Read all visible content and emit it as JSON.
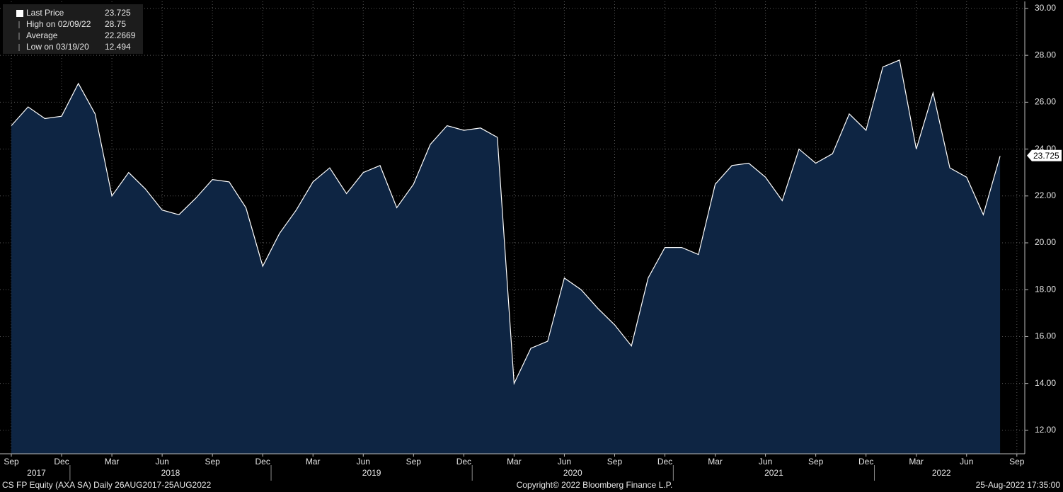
{
  "chart_data": {
    "type": "area",
    "x": [
      "2017-09",
      "2017-10",
      "2017-11",
      "2017-12",
      "2018-01",
      "2018-02",
      "2018-03",
      "2018-04",
      "2018-05",
      "2018-06",
      "2018-07",
      "2018-08",
      "2018-09",
      "2018-10",
      "2018-11",
      "2018-12",
      "2019-01",
      "2019-02",
      "2019-03",
      "2019-04",
      "2019-05",
      "2019-06",
      "2019-07",
      "2019-08",
      "2019-09",
      "2019-10",
      "2019-11",
      "2019-12",
      "2020-01",
      "2020-02",
      "2020-03",
      "2020-04",
      "2020-05",
      "2020-06",
      "2020-07",
      "2020-08",
      "2020-09",
      "2020-10",
      "2020-11",
      "2020-12",
      "2021-01",
      "2021-02",
      "2021-03",
      "2021-04",
      "2021-05",
      "2021-06",
      "2021-07",
      "2021-08",
      "2021-09",
      "2021-10",
      "2021-11",
      "2021-12",
      "2022-01",
      "2022-02",
      "2022-03",
      "2022-04",
      "2022-05",
      "2022-06",
      "2022-07",
      "2022-08"
    ],
    "series": [
      {
        "name": "Last Price",
        "color": "#ffffff",
        "fill": "#0e2543",
        "values": [
          25.0,
          25.8,
          25.3,
          25.4,
          26.8,
          25.5,
          22.0,
          23.0,
          22.3,
          21.4,
          21.2,
          21.9,
          22.7,
          22.6,
          21.5,
          19.0,
          20.4,
          21.4,
          22.6,
          23.2,
          22.1,
          23.0,
          23.3,
          21.5,
          22.5,
          24.2,
          25.0,
          24.8,
          24.9,
          24.5,
          14.0,
          15.5,
          15.8,
          18.5,
          18.0,
          17.2,
          16.5,
          15.6,
          18.5,
          19.8,
          19.8,
          19.5,
          22.5,
          23.3,
          23.4,
          22.8,
          21.8,
          24.0,
          23.4,
          23.8,
          25.5,
          24.8,
          27.5,
          27.8,
          24.0,
          26.4,
          23.2,
          22.8,
          21.2,
          23.7
        ]
      }
    ],
    "legend": [
      {
        "label": "Last Price",
        "value": 23.725
      },
      {
        "label": "High on 02/09/22",
        "value": 28.75
      },
      {
        "label": "Average",
        "value": 22.2669
      },
      {
        "label": "Low on 03/19/20",
        "value": 12.494
      }
    ],
    "last_price_label": "23.725",
    "ylim": [
      11,
      30.3
    ],
    "yticks": [
      {
        "value": 12,
        "label": "12.00"
      },
      {
        "value": 14,
        "label": "14.00"
      },
      {
        "value": 16,
        "label": "16.00"
      },
      {
        "value": 18,
        "label": "18.00"
      },
      {
        "value": 20,
        "label": "20.00"
      },
      {
        "value": 22,
        "label": "22.00"
      },
      {
        "value": 24,
        "label": "24.00"
      },
      {
        "value": 26,
        "label": "26.00"
      },
      {
        "value": 28,
        "label": "28.00"
      },
      {
        "value": 30,
        "label": "30.00"
      }
    ],
    "xticks": [
      {
        "value": "2017-09",
        "label": "Sep"
      },
      {
        "value": "2017-12",
        "label": "Dec"
      },
      {
        "value": "2018-03",
        "label": "Mar"
      },
      {
        "value": "2018-06",
        "label": "Jun"
      },
      {
        "value": "2018-09",
        "label": "Sep"
      },
      {
        "value": "2018-12",
        "label": "Dec"
      },
      {
        "value": "2019-03",
        "label": "Mar"
      },
      {
        "value": "2019-06",
        "label": "Jun"
      },
      {
        "value": "2019-09",
        "label": "Sep"
      },
      {
        "value": "2019-12",
        "label": "Dec"
      },
      {
        "value": "2020-03",
        "label": "Mar"
      },
      {
        "value": "2020-06",
        "label": "Jun"
      },
      {
        "value": "2020-09",
        "label": "Sep"
      },
      {
        "value": "2020-12",
        "label": "Dec"
      },
      {
        "value": "2021-03",
        "label": "Mar"
      },
      {
        "value": "2021-06",
        "label": "Jun"
      },
      {
        "value": "2021-09",
        "label": "Sep"
      },
      {
        "value": "2021-12",
        "label": "Dec"
      },
      {
        "value": "2022-03",
        "label": "Mar"
      },
      {
        "value": "2022-06",
        "label": "Jun"
      },
      {
        "value": "2022-09",
        "label": "Sep"
      }
    ],
    "years": [
      "2017",
      "2018",
      "2019",
      "2020",
      "2021",
      "2022"
    ],
    "grid": true,
    "footer_left": "CS FP Equity (AXA SA)   Daily 26AUG2017-25AUG2022",
    "footer_center": "Copyright© 2022 Bloomberg Finance L.P.",
    "footer_right": "25-Aug-2022 17:35:00"
  }
}
